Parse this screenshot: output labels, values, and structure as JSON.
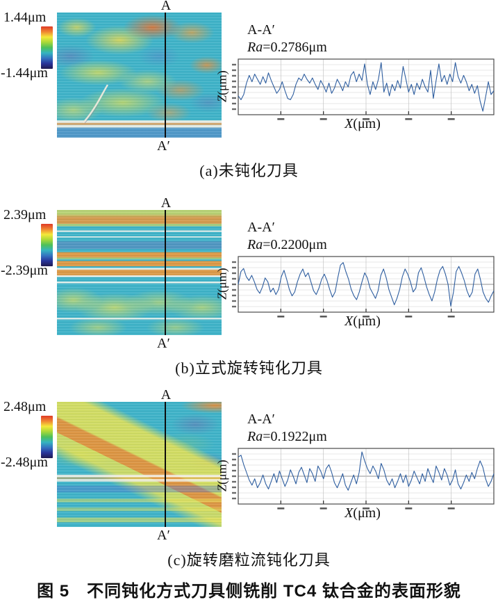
{
  "figure": {
    "title": "图 5　不同钝化方式刀具侧铣削 TC4 钛合金的表面形貌",
    "panels": [
      {
        "id": "a",
        "scale_max": "1.44μm",
        "scale_min": "-1.44μm",
        "section_top": "A",
        "section_bottom": "A′",
        "profile_title": "A-A′",
        "ra_symbol": "Ra",
        "ra_value": "=0.2786μm",
        "x_symbol": "X",
        "x_unit": "(μm)",
        "z_symbol": "Z",
        "z_unit": "(μm)",
        "caption": "(a)未钝化刀具"
      },
      {
        "id": "b",
        "scale_max": "2.39μm",
        "scale_min": "-2.39μm",
        "section_top": "A",
        "section_bottom": "A′",
        "profile_title": "A-A′",
        "ra_symbol": "Ra",
        "ra_value": "=0.2200μm",
        "x_symbol": "X",
        "x_unit": "(μm)",
        "z_symbol": "Z",
        "z_unit": "(μm)",
        "caption": "(b)立式旋转钝化刀具"
      },
      {
        "id": "c",
        "scale_max": "2.48μm",
        "scale_min": "-2.48μm",
        "section_top": "A",
        "section_bottom": "A′",
        "profile_title": "A-A′",
        "ra_symbol": "Ra",
        "ra_value": "=0.1922μm",
        "x_symbol": "X",
        "x_unit": "(μm)",
        "z_symbol": "Z",
        "z_unit": "(μm)",
        "caption": "(c)旋转磨粒流钝化刀具"
      }
    ]
  },
  "colors": {
    "colorbar_stops": [
      "#df3a26",
      "#f08432",
      "#f4e83a",
      "#a8d838",
      "#4cc05a",
      "#35b4c0",
      "#3473c0",
      "#28349a",
      "#201a50"
    ],
    "profile_line": "#2d5d9f",
    "grid_line": "#cfcfcf",
    "zero_line": "#8f8f8f",
    "frame": "#4a4a4a",
    "map_base": "#3eb3c8",
    "section_line": "#0c0c0c"
  },
  "chart_data": [
    {
      "type": "line",
      "title": "A-A′",
      "annotation": "Ra=0.2786μm",
      "xlabel": "X(μm)",
      "ylabel": "Z(μm)",
      "grid": true,
      "x_gridline_count": 5,
      "y_gridline_count": 9,
      "tick_labels_illegible": true,
      "y_range_norm": [
        -1,
        1
      ],
      "z_fullscale_um": 1.44,
      "values_norm": [
        -0.35,
        -0.5,
        -0.3,
        0.15,
        0.45,
        0.2,
        0.5,
        0.3,
        0.1,
        0.4,
        0.15,
        0.55,
        0.25,
        0.0,
        -0.25,
        -0.1,
        0.2,
        -0.15,
        -0.45,
        -0.5,
        -0.3,
        0.1,
        0.35,
        0.25,
        0.5,
        0.3,
        0.15,
        0.35,
        0.1,
        -0.1,
        0.25,
        0.05,
        -0.2,
        0.15,
        -0.25,
        -0.05,
        0.3,
        0.1,
        -0.15,
        0.2,
        0.0,
        0.45,
        0.6,
        0.2,
        0.5,
        0.25,
        0.9,
        0.1,
        -0.3,
        0.2,
        -0.1,
        0.3,
        0.95,
        -0.2,
        0.15,
        -0.35,
        0.1,
        -0.15,
        0.25,
        -0.05,
        0.8,
        0.3,
        -0.2,
        0.1,
        -0.3,
        0.15,
        -0.1,
        0.3,
        0.0,
        -0.2,
        0.65,
        -0.45,
        0.25,
        0.9,
        0.2,
        0.45,
        0.1,
        0.5,
        0.2,
        0.95,
        0.4,
        0.15,
        0.45,
        0.2,
        -0.15,
        0.1,
        -0.25,
        0.05,
        -0.55,
        -0.95,
        -0.4,
        0.2,
        -0.3,
        -0.15
      ]
    },
    {
      "type": "line",
      "title": "A-A′",
      "annotation": "Ra=0.2200μm",
      "xlabel": "X(μm)",
      "ylabel": "Z(μm)",
      "grid": true,
      "x_gridline_count": 5,
      "y_gridline_count": 9,
      "tick_labels_illegible": true,
      "y_range_norm": [
        -1,
        1
      ],
      "z_fullscale_um": 2.39,
      "values_norm": [
        0.0,
        0.5,
        0.62,
        0.3,
        0.15,
        0.35,
        0.1,
        -0.2,
        -0.35,
        -0.1,
        0.25,
        0.1,
        -0.3,
        -0.15,
        -0.4,
        -0.2,
        0.3,
        0.55,
        0.2,
        -0.2,
        -0.45,
        -0.3,
        0.1,
        0.4,
        0.6,
        0.3,
        0.45,
        0.1,
        -0.25,
        -0.4,
        -0.15,
        0.2,
        0.4,
        0.15,
        -0.2,
        -0.5,
        -0.3,
        0.25,
        0.75,
        0.85,
        0.5,
        0.2,
        -0.2,
        -0.45,
        -0.6,
        -0.3,
        0.1,
        0.45,
        0.25,
        -0.15,
        -0.35,
        -0.55,
        -0.25,
        0.35,
        0.6,
        0.25,
        -0.2,
        -0.5,
        -0.8,
        -0.55,
        -0.2,
        0.3,
        0.6,
        0.4,
        0.1,
        -0.3,
        -0.15,
        0.45,
        0.65,
        0.3,
        -0.1,
        -0.4,
        -0.65,
        -0.3,
        0.2,
        0.55,
        0.7,
        0.4,
        0.0,
        -0.85,
        -0.3,
        0.5,
        0.7,
        0.45,
        0.15,
        -0.25,
        -0.5,
        -0.3,
        0.4,
        0.6,
        0.2,
        -0.3,
        -0.55,
        -0.7,
        -0.45,
        -0.25
      ]
    },
    {
      "type": "line",
      "title": "A-A′",
      "annotation": "Ra=0.1922μm",
      "xlabel": "X(μm)",
      "ylabel": "Z(μm)",
      "grid": true,
      "x_gridline_count": 5,
      "y_gridline_count": 9,
      "tick_labels_illegible": true,
      "y_range_norm": [
        -1,
        1
      ],
      "z_fullscale_um": 2.48,
      "values_norm": [
        0.75,
        0.82,
        0.45,
        0.15,
        -0.15,
        -0.35,
        -0.1,
        -0.45,
        -0.25,
        0.05,
        -0.3,
        -0.5,
        -0.2,
        0.1,
        -0.25,
        0.2,
        -0.1,
        -0.4,
        -0.15,
        0.25,
        0.0,
        -0.3,
        0.15,
        0.35,
        0.05,
        -0.25,
        0.3,
        0.1,
        -0.2,
        0.4,
        0.2,
        -0.1,
        0.3,
        0.45,
        0.15,
        -0.25,
        -0.45,
        -0.2,
        0.1,
        -0.35,
        -0.55,
        -0.25,
        0.05,
        -0.3,
        0.15,
        0.95,
        0.6,
        0.3,
        0.1,
        0.4,
        0.2,
        -0.1,
        0.5,
        0.25,
        -0.15,
        -0.35,
        -0.1,
        -0.45,
        -0.2,
        0.1,
        -0.25,
        0.05,
        -0.4,
        -0.15,
        0.2,
        -0.05,
        -0.3,
        0.1,
        -0.2,
        0.3,
        0.0,
        -0.25,
        0.4,
        0.15,
        -0.15,
        0.3,
        0.05,
        -0.35,
        -0.15,
        0.25,
        -0.3,
        -0.5,
        -0.25,
        0.05,
        -0.2,
        0.15,
        -0.1,
        0.3,
        0.6,
        0.35,
        -0.1,
        -0.4,
        -0.2,
        0.1
      ]
    }
  ]
}
